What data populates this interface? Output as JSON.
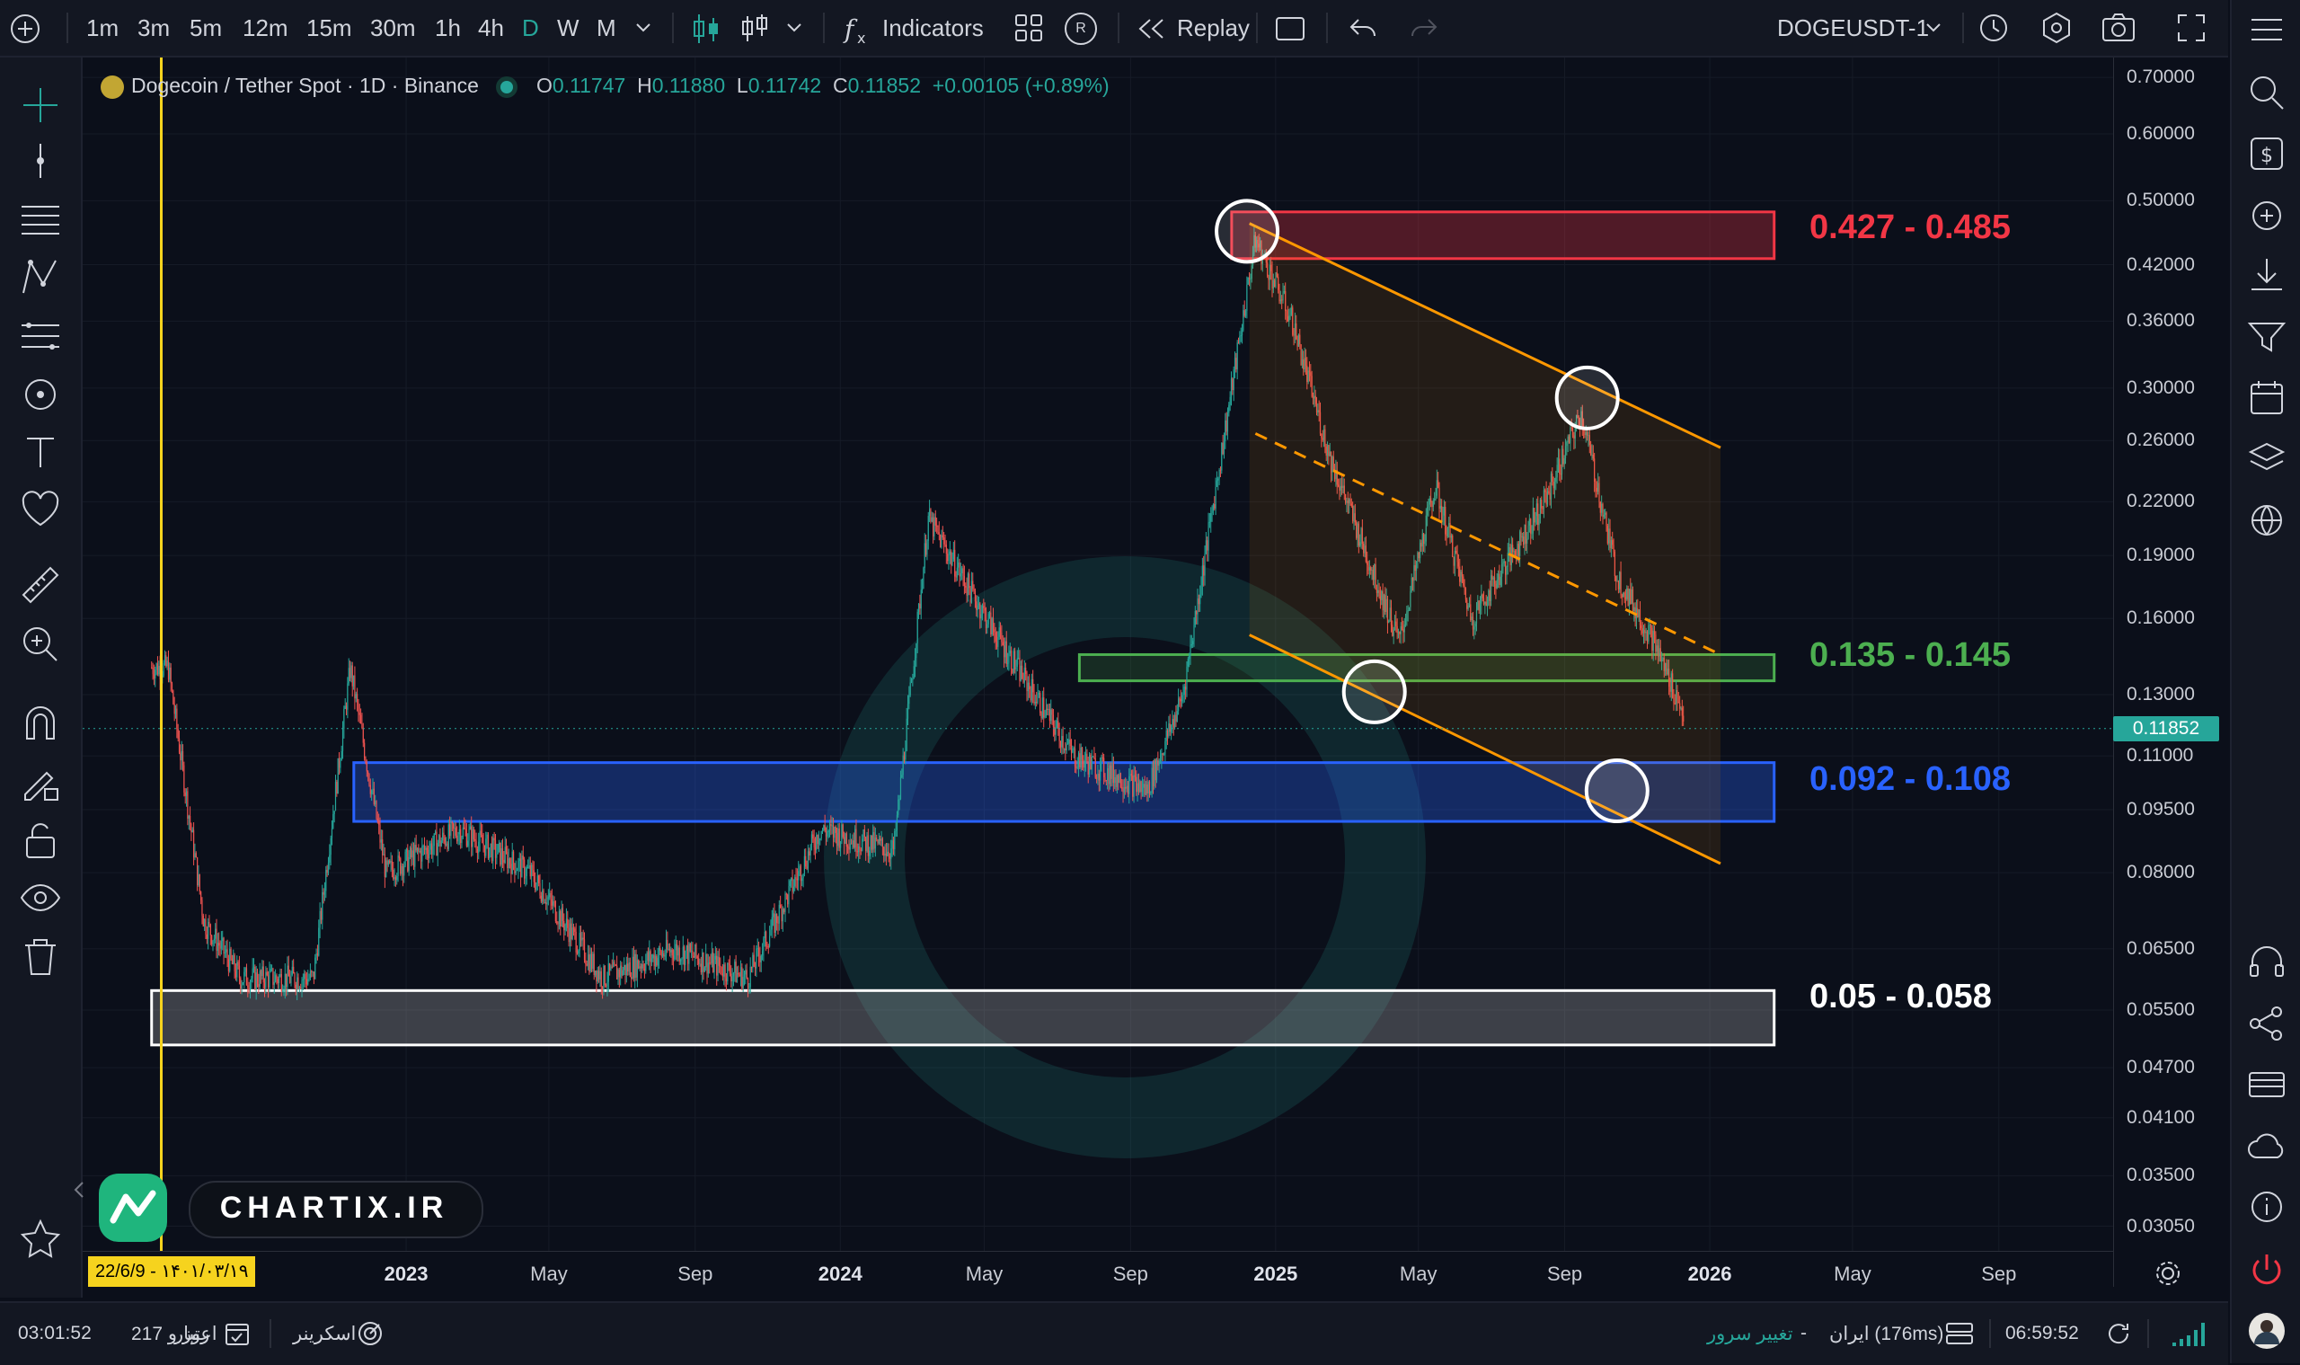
{
  "toolbar": {
    "intervals": [
      "1m",
      "3m",
      "5m",
      "12m",
      "15m",
      "30m",
      "1h",
      "4h",
      "D",
      "W",
      "M"
    ],
    "active_interval": "D",
    "indicators_label": "Indicators",
    "replay_label": "Replay",
    "r_badge": "R",
    "symbol": "DOGEUSDT-1"
  },
  "legend": {
    "title": "Dogecoin / Tether Spot · 1D · Binance",
    "o_key": "O",
    "o": "0.11747",
    "h_key": "H",
    "h": "0.11880",
    "l_key": "L",
    "l": "0.11742",
    "c_key": "C",
    "c": "0.11852",
    "change": "+0.00105 (+0.89%)"
  },
  "zones": [
    {
      "label": "0.427 - 0.485",
      "color": "#f23645"
    },
    {
      "label": "0.135 - 0.145",
      "color": "#4caf50"
    },
    {
      "label": "0.092 - 0.108",
      "color": "#2962ff"
    },
    {
      "label": "0.05 - 0.058",
      "color": "#ffffff"
    }
  ],
  "chart_data": {
    "type": "candlestick",
    "symbol": "DOGEUSDT",
    "timeframe": "1D",
    "y_scale": "log",
    "ylim": [
      0.028,
      0.72
    ],
    "y_ticks": [
      "0.70000",
      "0.60000",
      "0.50000",
      "0.42000",
      "0.36000",
      "0.30000",
      "0.26000",
      "0.22000",
      "0.19000",
      "0.16000",
      "0.13000",
      "0.11000",
      "0.09500",
      "0.08000",
      "0.06500",
      "0.05500",
      "0.04700",
      "0.04100",
      "0.03500",
      "0.03050"
    ],
    "x_ticks": [
      "2023",
      "May",
      "Sep",
      "2024",
      "May",
      "Sep",
      "2025",
      "May",
      "Sep",
      "2026",
      "May",
      "Sep"
    ],
    "last_price": "0.11852",
    "approx_price_path": [
      {
        "date": "2022-06",
        "close": 0.14
      },
      {
        "date": "2022-07",
        "close": 0.07
      },
      {
        "date": "2022-08",
        "close": 0.06
      },
      {
        "date": "2022-10",
        "close": 0.06
      },
      {
        "date": "2022-11",
        "close": 0.14
      },
      {
        "date": "2022-12",
        "close": 0.08
      },
      {
        "date": "2023-02",
        "close": 0.09
      },
      {
        "date": "2023-04",
        "close": 0.08
      },
      {
        "date": "2023-06",
        "close": 0.06
      },
      {
        "date": "2023-08",
        "close": 0.065
      },
      {
        "date": "2023-10",
        "close": 0.06
      },
      {
        "date": "2023-12",
        "close": 0.09
      },
      {
        "date": "2024-02",
        "close": 0.085
      },
      {
        "date": "2024-03",
        "close": 0.21
      },
      {
        "date": "2024-05",
        "close": 0.15
      },
      {
        "date": "2024-07",
        "close": 0.11
      },
      {
        "date": "2024-09",
        "close": 0.1
      },
      {
        "date": "2024-10",
        "close": 0.13
      },
      {
        "date": "2024-12",
        "close": 0.45
      },
      {
        "date": "2025-01",
        "close": 0.36
      },
      {
        "date": "2025-02",
        "close": 0.25
      },
      {
        "date": "2025-04",
        "close": 0.15
      },
      {
        "date": "2025-05",
        "close": 0.23
      },
      {
        "date": "2025-06",
        "close": 0.16
      },
      {
        "date": "2025-08",
        "close": 0.22
      },
      {
        "date": "2025-09",
        "close": 0.28
      },
      {
        "date": "2025-10",
        "close": 0.18
      },
      {
        "date": "2025-11",
        "close": 0.15
      },
      {
        "date": "2025-12",
        "close": 0.11852
      }
    ],
    "zones": [
      {
        "low": 0.427,
        "high": 0.485
      },
      {
        "low": 0.135,
        "high": 0.145
      },
      {
        "low": 0.092,
        "high": 0.108
      },
      {
        "low": 0.05,
        "high": 0.058
      }
    ]
  },
  "date_marker": "22/6/9 - ۱۴۰۱/۰۳/۱۹",
  "watermark": "CHARTIX.IR",
  "bottombar": {
    "time_left": "03:01:52",
    "days_label": "217 روز و",
    "credit_label": "اعتبار",
    "screener_label": "اسکرینر",
    "change_server": "تغییر سرور",
    "server_dash": "-",
    "server": "ایران (176ms)",
    "clock": "06:59:52"
  }
}
